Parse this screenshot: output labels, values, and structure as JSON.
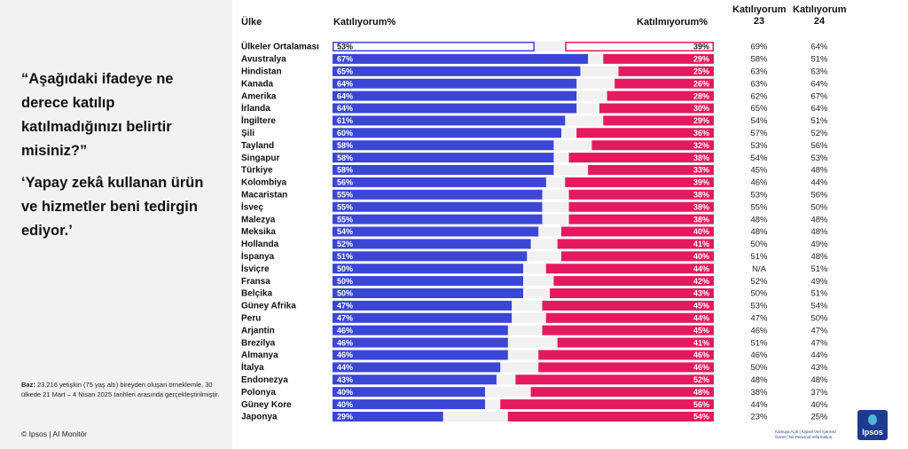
{
  "left_panel": {
    "question": "“Aşağıdaki ifadeye ne derece katılıp katılmadığınızı belirtir misiniz?”",
    "statement": "‘Yapay zekâ kullanan ürün ve hizmetler beni tedirgin ediyor.’",
    "base_label": "Baz:",
    "base_text": "23.216 yetişkin (75 yaş altı) bireyden oluşan örneklemle, 30 ülkede 21 Mart – 4 Nisan 2025 tarihleri arasında gerçekleştirilmiştir.",
    "copyright": "© Ipsos | AI Monitör"
  },
  "headers": {
    "country": "Ülke",
    "agree": "Katılıyorum%",
    "disagree": "Katılmıyorum%",
    "agree23_line1": "Katılıyorum",
    "agree23_line2": "23",
    "agree24_line1": "Katılıyorum",
    "agree24_line2": "24"
  },
  "footer": {
    "logo_text": "Ipsos",
    "classification": "Kamuya Açık | Kişisel Veri İçermez Genel | No Personal Information"
  },
  "colors": {
    "agree": "#3b46d6",
    "disagree": "#e5195f",
    "gap": "#f1f1f1"
  },
  "chart_data": {
    "type": "bar",
    "stacked": true,
    "title": "Yapay zekâ kullanan ürün ve hizmetler beni tedirgin ediyor",
    "series": [
      {
        "name": "Katılıyorum%",
        "values": [
          53,
          67,
          65,
          64,
          64,
          64,
          61,
          60,
          58,
          58,
          58,
          56,
          55,
          55,
          55,
          54,
          52,
          51,
          50,
          50,
          50,
          47,
          47,
          46,
          46,
          46,
          44,
          43,
          40,
          40,
          29
        ]
      },
      {
        "name": "Katılmıyorum%",
        "values": [
          39,
          29,
          25,
          26,
          28,
          30,
          29,
          36,
          32,
          38,
          33,
          39,
          38,
          38,
          38,
          40,
          41,
          40,
          44,
          42,
          43,
          45,
          44,
          45,
          41,
          46,
          46,
          52,
          48,
          56,
          54
        ]
      }
    ],
    "categories": [
      "Ülkeler Ortalaması",
      "Avustralya",
      "Hindistan",
      "Kanada",
      "Amerika",
      "İrlanda",
      "İngiltere",
      "Şili",
      "Tayland",
      "Singapur",
      "Türkiye",
      "Kolombiya",
      "Macaristan",
      "İsveç",
      "Malezya",
      "Meksika",
      "Hollanda",
      "İspanya",
      "İsviçre",
      "Fransa",
      "Belçika",
      "Güney Afrika",
      "Peru",
      "Arjantin",
      "Brezilya",
      "Almanya",
      "İtalya",
      "Endonezya",
      "Polonya",
      "Güney Kore",
      "Japonya"
    ],
    "agree_23": [
      "69%",
      "58%",
      "63%",
      "63%",
      "62%",
      "65%",
      "54%",
      "57%",
      "53%",
      "54%",
      "45%",
      "46%",
      "53%",
      "55%",
      "48%",
      "48%",
      "50%",
      "51%",
      "N/A",
      "52%",
      "50%",
      "53%",
      "47%",
      "46%",
      "51%",
      "46%",
      "50%",
      "48%",
      "38%",
      "44%",
      "23%"
    ],
    "agree_24": [
      "64%",
      "51%",
      "63%",
      "64%",
      "67%",
      "64%",
      "51%",
      "52%",
      "56%",
      "53%",
      "48%",
      "44%",
      "56%",
      "50%",
      "48%",
      "48%",
      "49%",
      "48%",
      "51%",
      "49%",
      "51%",
      "54%",
      "50%",
      "47%",
      "47%",
      "44%",
      "43%",
      "48%",
      "37%",
      "40%",
      "25%"
    ],
    "value_suffix": "%",
    "xlim": [
      0,
      100
    ]
  }
}
